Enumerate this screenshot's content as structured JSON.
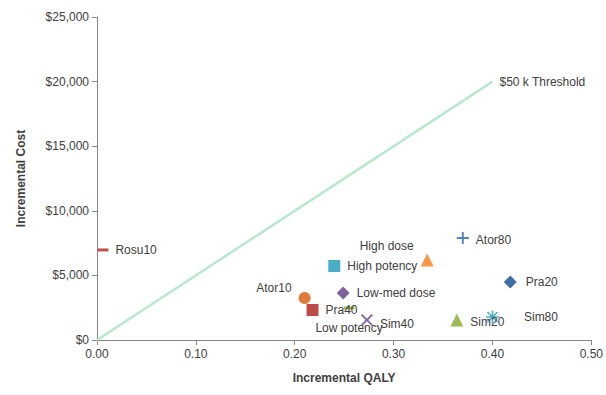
{
  "chart_data": {
    "type": "scatter",
    "x_label": "Incremental QALY",
    "y_label": "Incremental Cost",
    "xlim": [
      0,
      0.5
    ],
    "ylim": [
      0,
      25000
    ],
    "xticks": [
      {
        "value": 0,
        "label": "0.00"
      },
      {
        "value": 0.1,
        "label": "0.10"
      },
      {
        "value": 0.2,
        "label": "0.20"
      },
      {
        "value": 0.3,
        "label": "0.30"
      },
      {
        "value": 0.4,
        "label": "0.40"
      },
      {
        "value": 0.5,
        "label": "0.50"
      }
    ],
    "yticks": [
      {
        "value": 0,
        "label": "$0"
      },
      {
        "value": 5000,
        "label": "$5,000"
      },
      {
        "value": 10000,
        "label": "$10,000"
      },
      {
        "value": 15000,
        "label": "$15,000"
      },
      {
        "value": 20000,
        "label": "$20,000"
      },
      {
        "value": 25000,
        "label": "$25,000"
      }
    ],
    "grid": false,
    "series": [
      {
        "name": "Rosu10",
        "color": "#c0504d",
        "marker": "dash",
        "x": [
          0.006
        ],
        "values": [
          6970
        ]
      },
      {
        "name": "Ator10",
        "color": "#e07b39",
        "marker": "circle",
        "x": [
          0.21
        ],
        "values": [
          3250
        ]
      },
      {
        "name": "Pra40",
        "color": "#be4b48",
        "marker": "square",
        "x": [
          0.218
        ],
        "values": [
          2320
        ]
      },
      {
        "name": "High potency",
        "color": "#4bacc6",
        "marker": "square",
        "x": [
          0.24
        ],
        "values": [
          5730
        ]
      },
      {
        "name": "Low-med dose",
        "color": "#8064a2",
        "marker": "diamond",
        "x": [
          0.249
        ],
        "values": [
          3640
        ]
      },
      {
        "name": "Low potency",
        "color": "#9bbb59",
        "marker": "dash",
        "x": [
          0.255
        ],
        "values": [
          2480
        ]
      },
      {
        "name": "Sim40",
        "color": "#8064a2",
        "marker": "x",
        "x": [
          0.273
        ],
        "values": [
          1550
        ]
      },
      {
        "name": "High dose",
        "color": "#f79646",
        "marker": "triangle",
        "x": [
          0.334
        ],
        "values": [
          6190
        ]
      },
      {
        "name": "Ator80",
        "color": "#4f81bd",
        "marker": "plus",
        "x": [
          0.37
        ],
        "values": [
          7890
        ]
      },
      {
        "name": "Pra20",
        "color": "#3f6ea5",
        "marker": "diamond",
        "x": [
          0.418
        ],
        "values": [
          4490
        ]
      },
      {
        "name": "Sim20",
        "color": "#9bbb59",
        "marker": "triangle",
        "x": [
          0.364
        ],
        "values": [
          1550
        ]
      },
      {
        "name": "Sim80",
        "color": "#4bacc6",
        "marker": "asterisk",
        "x": [
          0.4
        ],
        "values": [
          1780
        ]
      },
      {
        "name": "$50 k Threshold",
        "type": "line",
        "color": "#b7e8cf",
        "line_style": "solid",
        "x": [
          0,
          0.4
        ],
        "values": [
          0,
          20000
        ]
      }
    ]
  }
}
